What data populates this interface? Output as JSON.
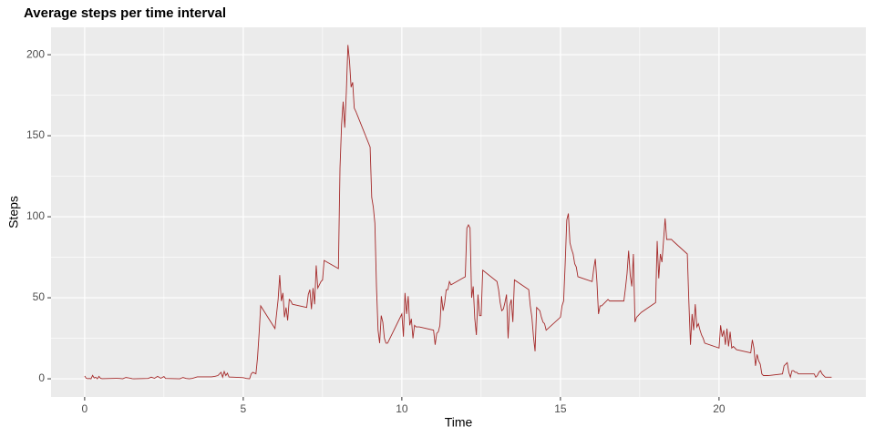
{
  "chart_data": {
    "type": "line",
    "title": "Average steps per time interval",
    "x_label": "Time",
    "y_label": "Steps",
    "color": "#a52a2a",
    "x": [
      0.0,
      0.05,
      0.1,
      0.15,
      0.2,
      0.25,
      0.3,
      0.35,
      0.4,
      0.45,
      0.5,
      0.55,
      1.0,
      1.1,
      1.2,
      1.3,
      1.4,
      1.45,
      1.5,
      1.55,
      2.0,
      2.1,
      2.2,
      2.3,
      2.4,
      2.5,
      2.55,
      3.0,
      3.1,
      3.2,
      3.3,
      3.4,
      3.55,
      4.0,
      4.1,
      4.2,
      4.3,
      4.35,
      4.4,
      4.45,
      4.5,
      4.55,
      5.0,
      5.1,
      5.2,
      5.25,
      5.3,
      5.4,
      5.45,
      5.5,
      5.55,
      6.0,
      6.05,
      6.1,
      6.15,
      6.2,
      6.25,
      6.3,
      6.35,
      6.4,
      6.45,
      6.5,
      6.55,
      7.0,
      7.05,
      7.1,
      7.15,
      7.2,
      7.25,
      7.3,
      7.35,
      7.4,
      7.45,
      7.5,
      7.55,
      8.0,
      8.05,
      8.1,
      8.15,
      8.2,
      8.25,
      8.3,
      8.35,
      8.4,
      8.45,
      8.5,
      8.55,
      9.0,
      9.05,
      9.1,
      9.15,
      9.2,
      9.25,
      9.3,
      9.35,
      9.4,
      9.45,
      9.5,
      9.55,
      10.0,
      10.05,
      10.1,
      10.15,
      10.2,
      10.25,
      10.3,
      10.35,
      10.4,
      10.45,
      10.5,
      10.55,
      11.0,
      11.05,
      11.1,
      11.15,
      11.2,
      11.25,
      11.3,
      11.35,
      11.4,
      11.45,
      11.5,
      11.55,
      12.0,
      12.05,
      12.1,
      12.15,
      12.2,
      12.25,
      12.3,
      12.35,
      12.4,
      12.45,
      12.5,
      12.55,
      13.0,
      13.05,
      13.1,
      13.15,
      13.2,
      13.25,
      13.3,
      13.35,
      13.4,
      13.45,
      13.5,
      13.55,
      14.0,
      14.05,
      14.1,
      14.15,
      14.2,
      14.25,
      14.3,
      14.35,
      14.4,
      14.45,
      14.5,
      14.55,
      15.0,
      15.05,
      15.1,
      15.15,
      15.2,
      15.25,
      15.3,
      15.35,
      15.4,
      15.45,
      15.5,
      15.55,
      16.0,
      16.05,
      16.1,
      16.15,
      16.2,
      16.25,
      16.3,
      16.35,
      16.4,
      16.45,
      16.5,
      16.55,
      17.0,
      17.05,
      17.1,
      17.15,
      17.2,
      17.25,
      17.3,
      17.35,
      17.4,
      17.45,
      17.5,
      17.55,
      18.0,
      18.05,
      18.1,
      18.15,
      18.2,
      18.25,
      18.3,
      18.35,
      18.4,
      18.45,
      18.5,
      18.55,
      19.0,
      19.05,
      19.1,
      19.15,
      19.2,
      19.25,
      19.3,
      19.35,
      19.4,
      19.45,
      19.5,
      19.55,
      20.0,
      20.05,
      20.1,
      20.15,
      20.2,
      20.25,
      20.3,
      20.35,
      20.4,
      20.45,
      20.5,
      20.55,
      21.0,
      21.05,
      21.1,
      21.15,
      21.2,
      21.25,
      21.3,
      21.35,
      21.4,
      21.45,
      21.5,
      21.55,
      22.0,
      22.05,
      22.1,
      22.15,
      22.2,
      22.25,
      22.3,
      22.35,
      22.4,
      22.45,
      22.5,
      22.55,
      23.0,
      23.05,
      23.1,
      23.15,
      23.2,
      23.25,
      23.3,
      23.35,
      23.4,
      23.45,
      23.5,
      23.55
    ],
    "values": [
      1.7,
      0.3,
      0.1,
      0.2,
      0,
      2.1,
      0.5,
      0.9,
      0,
      1.5,
      0.3,
      0.1,
      0.3,
      0.2,
      0,
      0.8,
      0.5,
      0.3,
      0.1,
      0,
      0.2,
      1.0,
      0.3,
      1.5,
      0.3,
      1.4,
      0.2,
      0,
      0.8,
      0.2,
      0,
      0.3,
      1.2,
      1.2,
      1.5,
      2.0,
      4.0,
      1.0,
      4.5,
      2.0,
      3.5,
      1.1,
      0.7,
      0.2,
      0,
      3,
      4,
      3.1,
      13,
      28,
      45,
      31,
      40,
      49,
      64,
      48,
      53,
      38,
      44,
      36,
      49,
      48,
      46,
      44,
      52,
      55,
      43,
      56,
      46,
      70,
      56,
      58,
      60,
      61,
      73,
      68,
      130,
      157,
      171,
      155,
      177,
      206,
      196,
      180,
      183,
      167,
      165,
      143,
      112,
      106,
      96,
      57,
      30,
      22,
      39,
      35,
      25,
      22,
      22,
      40,
      26,
      53,
      40,
      51,
      33,
      37,
      25,
      33,
      32,
      32,
      32,
      30,
      21,
      28,
      29,
      33,
      51,
      42,
      47,
      55,
      55,
      60,
      58,
      63,
      93,
      95,
      93,
      50,
      57,
      37,
      27,
      52,
      39,
      39,
      67,
      60,
      55,
      47,
      42,
      43,
      47,
      52,
      25,
      45,
      49,
      35,
      61,
      55,
      45,
      38,
      26,
      17,
      44,
      43,
      42,
      38,
      35,
      34,
      30,
      38,
      45,
      48,
      71,
      98,
      102,
      84,
      80,
      77,
      71,
      69,
      63,
      60,
      68,
      74,
      60,
      40,
      45,
      45,
      46,
      47,
      48,
      49,
      48,
      48,
      56,
      65,
      79,
      64,
      57,
      77,
      35,
      38,
      39,
      40,
      41,
      47,
      85,
      62,
      77,
      72,
      85,
      99,
      86,
      86,
      86,
      86,
      85,
      77,
      47,
      21,
      40,
      30,
      46,
      32,
      34,
      30,
      27,
      25,
      22,
      19,
      33,
      26,
      30,
      21,
      31,
      20,
      29,
      19,
      20,
      19,
      18,
      16,
      24,
      19,
      8,
      15,
      11,
      9,
      3,
      2,
      2,
      2,
      2,
      3,
      8,
      9,
      10,
      4,
      1,
      5,
      5,
      4,
      4,
      3,
      3,
      3,
      1,
      2,
      4,
      5,
      3,
      2,
      1,
      1,
      1,
      1,
      1
    ],
    "xlim": [
      -1.06,
      24.63
    ],
    "xticks": [
      0,
      5,
      10,
      15,
      20
    ],
    "ylim": [
      -11.2,
      216.9
    ],
    "yticks": [
      0,
      50,
      100,
      150,
      200
    ],
    "grid": true
  }
}
